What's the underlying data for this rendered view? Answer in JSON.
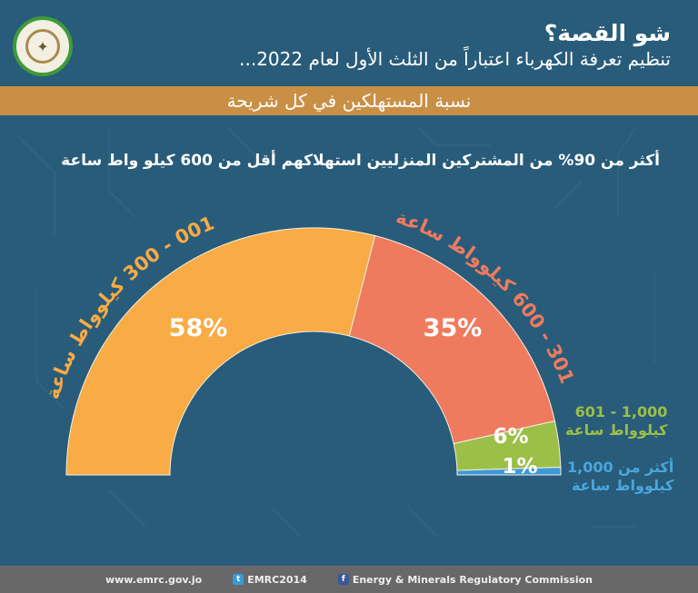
{
  "header": {
    "title": "شو القصة؟",
    "subtitle": "تنظيم تعرفة الكهرباء اعتباراً من الثلث الأول لعام 2022..."
  },
  "banner": "نسبة المستهلكين في كل شريحة",
  "headline": "أكثر من 90% من المشتركين المنزليين استهلاكهم أقل من 600 كيلو واط ساعة",
  "chart_data": {
    "type": "pie",
    "variant": "half-donut",
    "categories": [
      "001 - 300 كيلوواط ساعة",
      "301 - 600 كيلوواط ساعة",
      "1,000 - 601 كيلوواط ساعة",
      "أكثر من 1,000 كيلوواط ساعة"
    ],
    "values": [
      58,
      35,
      6,
      1
    ],
    "data_labels": [
      "58%",
      "35%",
      "6%",
      "1%"
    ],
    "colors": [
      "#f9ab45",
      "#ef7b5e",
      "#9cbf48",
      "#3d9ad6"
    ],
    "label_lines": [
      [
        "1,000 - 601",
        "كيلوواط ساعة"
      ],
      [
        "أكثر من 1,000",
        "كيلوواط ساعة"
      ]
    ]
  },
  "footer": {
    "website": "www.emrc.gov.jo",
    "twitter": "EMRC2014",
    "facebook": "Energy & Minerals Regulatory Commission",
    "twitter_icon": "twitter-icon",
    "facebook_icon": "facebook-icon"
  }
}
